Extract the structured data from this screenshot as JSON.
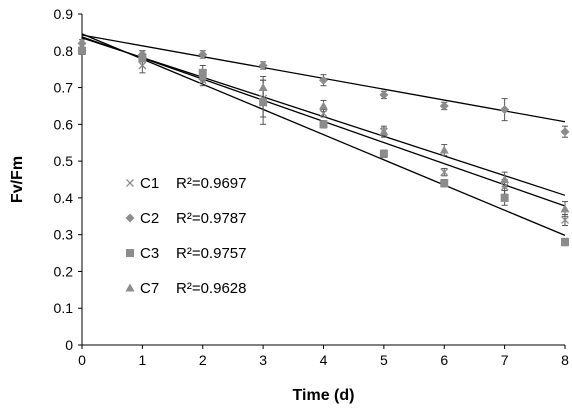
{
  "chart_data": {
    "type": "scatter",
    "xlabel": "Time (d)",
    "ylabel": "Fv/Fm",
    "xlim": [
      0,
      8
    ],
    "ylim": [
      0,
      0.9
    ],
    "xticks": [
      "0",
      "1",
      "2",
      "3",
      "4",
      "5",
      "6",
      "7",
      "8"
    ],
    "yticks": [
      "0",
      "0.1",
      "0.2",
      "0.3",
      "0.4",
      "0.5",
      "0.6",
      "0.7",
      "0.8",
      "0.9"
    ],
    "grid": false,
    "legend_position": "lower-left inside plot",
    "series": [
      {
        "name": "C1",
        "r2_label": "R²=0.9697",
        "marker": "x",
        "color": "#8c8c8c",
        "x": [
          0,
          1,
          2,
          3,
          4,
          5,
          6,
          7,
          8
        ],
        "y": [
          0.8,
          0.76,
          0.72,
          0.67,
          0.63,
          0.58,
          0.47,
          0.43,
          0.34
        ],
        "err": [
          0.01,
          0.02,
          0.015,
          0.05,
          0.01,
          0.01,
          0.01,
          0.02,
          0.015
        ],
        "trend": [
          0.835,
          -0.0535
        ]
      },
      {
        "name": "C2",
        "r2_label": "R²=0.9787",
        "marker": "diamond",
        "color": "#8c8c8c",
        "x": [
          0,
          1,
          2,
          3,
          4,
          5,
          6,
          7,
          8
        ],
        "y": [
          0.82,
          0.79,
          0.79,
          0.76,
          0.72,
          0.68,
          0.65,
          0.64,
          0.58
        ],
        "err": [
          0.01,
          0.01,
          0.01,
          0.01,
          0.015,
          0.01,
          0.01,
          0.03,
          0.015
        ],
        "trend": [
          0.843,
          -0.0295
        ]
      },
      {
        "name": "C3",
        "r2_label": "R²=0.9757",
        "marker": "square",
        "color": "#8c8c8c",
        "x": [
          0,
          1,
          2,
          3,
          4,
          5,
          6,
          7,
          8
        ],
        "y": [
          0.8,
          0.78,
          0.74,
          0.66,
          0.6,
          0.52,
          0.44,
          0.4,
          0.28
        ],
        "err": [
          0.01,
          0.01,
          0.02,
          0.06,
          0.01,
          0.01,
          0.01,
          0.02,
          0.01
        ],
        "trend": [
          0.846,
          -0.0685
        ]
      },
      {
        "name": "C7",
        "r2_label": "R²=0.9628",
        "marker": "triangle",
        "color": "#8c8c8c",
        "x": [
          0,
          1,
          2,
          3,
          4,
          5,
          6,
          7,
          8
        ],
        "y": [
          0.81,
          0.79,
          0.73,
          0.7,
          0.65,
          0.58,
          0.53,
          0.45,
          0.37
        ],
        "err": [
          0.01,
          0.01,
          0.015,
          0.03,
          0.015,
          0.015,
          0.015,
          0.02,
          0.02
        ],
        "trend": [
          0.838,
          -0.0575
        ]
      }
    ]
  }
}
